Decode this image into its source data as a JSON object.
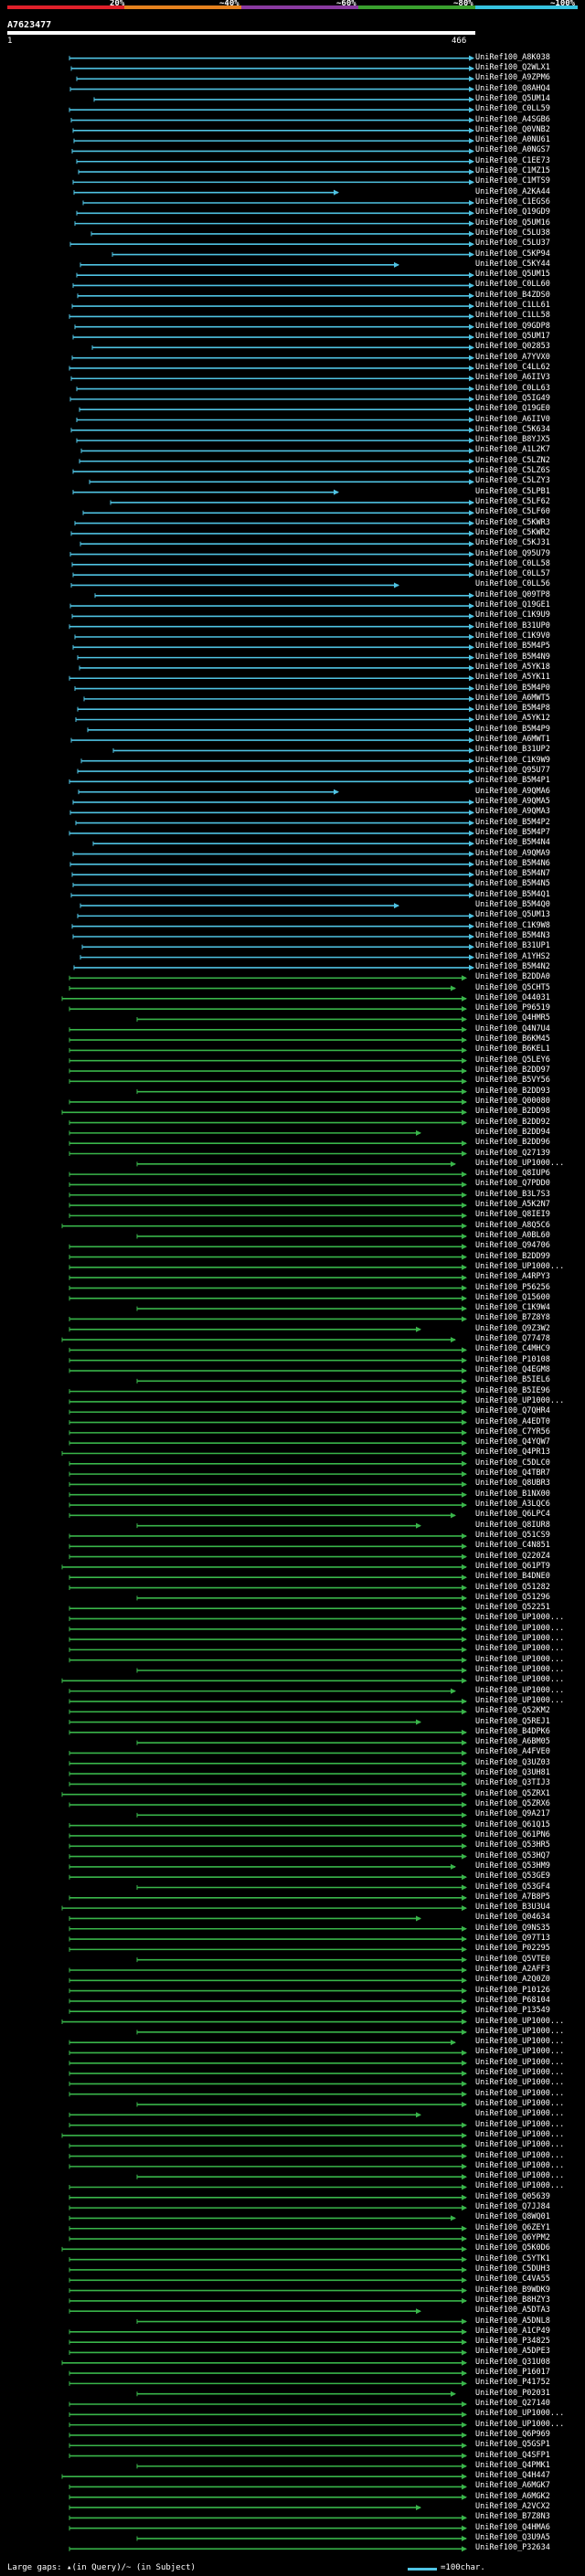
{
  "header": {
    "scale_labels": [
      "20%",
      "~40%",
      "~60%",
      "~80%",
      "~100%"
    ],
    "scale_colors": [
      "#e0202a",
      "#e6821e",
      "#8a3aa0",
      "#3aa02e",
      "#36c3e0"
    ],
    "query_id": "A7623477",
    "ruler_start": "1",
    "ruler_end": "466"
  },
  "colors": {
    "cyan": "#4fc3e3",
    "green": "#39b54a",
    "gap": "#ffffff"
  },
  "rows": {
    "cyan_labels": [
      "UniRef100_A8K038",
      "UniRef100_Q2WLX1",
      "UniRef100_A9ZPM6",
      "UniRef100_Q8AHQ4",
      "UniRef100_Q5UM14",
      "UniRef100_C0LL59",
      "UniRef100_A4SGB6",
      "UniRef100_Q0VNB2",
      "UniRef100_A0NU61",
      "UniRef100_A0NGS7",
      "UniRef100_C1EE73",
      "UniRef100_C1MZ15",
      "UniRef100_C1MTS9",
      "UniRef100_A2KA44",
      "UniRef100_C1EGS6",
      "UniRef100_Q19GD9",
      "UniRef100_Q5UM16",
      "UniRef100_C5LU38",
      "UniRef100_C5LU37",
      "UniRef100_C5KP94",
      "UniRef100_C5KY44",
      "UniRef100_Q5UM15",
      "UniRef100_C0LL60",
      "UniRef100_B4ZDS0",
      "UniRef100_C1LL61",
      "UniRef100_C1LL58",
      "UniRef100_Q9GDP8",
      "UniRef100_Q5UM17",
      "UniRef100_Q02853",
      "UniRef100_A7YVX0",
      "UniRef100_C4LL62",
      "UniRef100_A6IIV3",
      "UniRef100_C0LL63",
      "UniRef100_Q5IG49",
      "UniRef100_Q19GE0",
      "UniRef100_A6IIV0",
      "UniRef100_C5K634",
      "UniRef100_B8YJX5",
      "UniRef100_A1L2K7",
      "UniRef100_C5LZN2",
      "UniRef100_C5LZ6S",
      "UniRef100_C5LZY3",
      "UniRef100_C5LPB1",
      "UniRef100_C5LF62",
      "UniRef100_C5LF60",
      "UniRef100_C5KWR3",
      "UniRef100_C5KWR2",
      "UniRef100_C5KJ31",
      "UniRef100_Q95U79",
      "UniRef100_C0LL58",
      "UniRef100_C0LL57",
      "UniRef100_C0LL56",
      "UniRef100_Q09TP8",
      "UniRef100_Q19GE1",
      "UniRef100_C1K9U9",
      "UniRef100_B31UP0",
      "UniRef100_C1K9V0",
      "UniRef100_B5M4P5",
      "UniRef100_B5M4N9",
      "UniRef100_A5YK18",
      "UniRef100_A5YK11",
      "UniRef100_B5M4P0",
      "UniRef100_A6MWT5",
      "UniRef100_B5M4P8",
      "UniRef100_A5YK12",
      "UniRef100_B5M4P9",
      "UniRef100_A6MWT1",
      "UniRef100_B31UP2",
      "UniRef100_C1K9W9",
      "UniRef100_Q95U77",
      "UniRef100_B5M4P1",
      "UniRef100_A9QMA6",
      "UniRef100_A9QMA5",
      "UniRef100_A9QMA3",
      "UniRef100_B5M4P2",
      "UniRef100_B5M4P7",
      "UniRef100_B5M4N4",
      "UniRef100_A9QMA9",
      "UniRef100_B5M4N6",
      "UniRef100_B5M4N7",
      "UniRef100_B5M4N5",
      "UniRef100_B5M4Q1",
      "UniRef100_B5M4Q0",
      "UniRef100_Q5UM13",
      "UniRef100_C1K9W8",
      "UniRef100_B5M4N3",
      "UniRef100_B31UP1",
      "UniRef100_A1YHS2",
      "UniRef100_B5M4N2"
    ],
    "green_labels": [
      "UniRef100_B2DDA0",
      "UniRef100_Q5CHT5",
      "UniRef100_O44031",
      "UniRef100_P96519",
      "UniRef100_Q4HMR5",
      "UniRef100_Q4N7U4",
      "UniRef100_B6KM45",
      "UniRef100_B6KEL1",
      "UniRef100_Q5LEY6",
      "UniRef100_B2DD97",
      "UniRef100_B5VY56",
      "UniRef100_B2DD93",
      "UniRef100_Q00080",
      "UniRef100_B2DD98",
      "UniRef100_B2DD92",
      "UniRef100_B2DD94",
      "UniRef100_B2DD96",
      "UniRef100_Q27139",
      "UniRef100_UP1000...",
      "UniRef100_Q8IUP6",
      "UniRef100_Q7PDD0",
      "UniRef100_B3L7S3",
      "UniRef100_A5K2N7",
      "UniRef100_Q8IEI9",
      "UniRef100_A8Q5C6",
      "UniRef100_A0BL60",
      "UniRef100_Q94706",
      "UniRef100_B2DD99",
      "UniRef100_UP1000...",
      "UniRef100_A4RPY3",
      "UniRef100_P56256",
      "UniRef100_Q15600",
      "UniRef100_C1K9W4",
      "UniRef100_B7Z8Y8",
      "UniRef100_Q9Z3W2",
      "UniRef100_Q77478",
      "UniRef100_C4MHC9",
      "UniRef100_P10108",
      "UniRef100_Q4EGM8",
      "UniRef100_B5IEL6",
      "UniRef100_B5IE96",
      "UniRef100_UP1000...",
      "UniRef100_Q7QHR4",
      "UniRef100_A4EDT0",
      "UniRef100_C7YR56",
      "UniRef100_Q4YQW7",
      "UniRef100_Q4PR13",
      "UniRef100_C5DLC0",
      "UniRef100_Q4TBR7",
      "UniRef100_Q8UBR3",
      "UniRef100_B1NX00",
      "UniRef100_A3LQC6",
      "UniRef100_Q6LPC4",
      "UniRef100_Q8IUR8",
      "UniRef100_Q51CS9",
      "UniRef100_C4N851",
      "UniRef100_Q220Z4",
      "UniRef100_Q61PT9",
      "UniRef100_B4DNE0",
      "UniRef100_Q51282",
      "UniRef100_Q51296",
      "UniRef100_Q52251",
      "UniRef100_UP1000...",
      "UniRef100_UP1000...",
      "UniRef100_UP1000...",
      "UniRef100_UP1000...",
      "UniRef100_UP1000...",
      "UniRef100_UP1000...",
      "UniRef100_UP1000...",
      "UniRef100_UP1000...",
      "UniRef100_UP1000...",
      "UniRef100_Q52KM2",
      "UniRef100_Q5REJ1",
      "UniRef100_B4DPK6",
      "UniRef100_A6BM05",
      "UniRef100_A4FVE0",
      "UniRef100_Q3UZ03",
      "UniRef100_Q3UH81",
      "UniRef100_Q3TIJ3",
      "UniRef100_Q5ZRX1",
      "UniRef100_Q5ZRX6",
      "UniRef100_Q9A217",
      "UniRef100_Q61Q15",
      "UniRef100_Q61PN6",
      "UniRef100_Q53HR5",
      "UniRef100_Q53HQ7",
      "UniRef100_Q53HM9",
      "UniRef100_Q53GE9",
      "UniRef100_Q53GF4",
      "UniRef100_A7B8P5",
      "UniRef100_B3U3U4",
      "UniRef100_Q04634",
      "UniRef100_Q9NS35",
      "UniRef100_Q97T13",
      "UniRef100_P02295",
      "UniRef100_Q5VTE0",
      "UniRef100_A2AFF3",
      "UniRef100_A2Q0Z0",
      "UniRef100_P10126",
      "UniRef100_P68104",
      "UniRef100_P13549",
      "UniRef100_UP1000...",
      "UniRef100_UP1000...",
      "UniRef100_UP1000...",
      "UniRef100_UP1000...",
      "UniRef100_UP1000...",
      "UniRef100_UP1000...",
      "UniRef100_UP1000...",
      "UniRef100_UP1000...",
      "UniRef100_UP1000...",
      "UniRef100_UP1000...",
      "UniRef100_UP1000...",
      "UniRef100_UP1000...",
      "UniRef100_UP1000...",
      "UniRef100_UP1000...",
      "UniRef100_UP1000...",
      "UniRef100_UP1000...",
      "UniRef100_UP1000...",
      "UniRef100_Q05639",
      "UniRef100_Q7JJ84",
      "UniRef100_Q8WQ01",
      "UniRef100_Q6ZEY1",
      "UniRef100_Q6YPM2",
      "UniRef100_Q5K0D6",
      "UniRef100_C5YTK1",
      "UniRef100_C5DUH3",
      "UniRef100_C4VA55",
      "UniRef100_B9WDK9",
      "UniRef100_B8HZY3",
      "UniRef100_A5DTA3",
      "UniRef100_A5DNL8",
      "UniRef100_A1CP49",
      "UniRef100_P34825",
      "UniRef100_A5DPE3",
      "UniRef100_Q31U08",
      "UniRef100_P16017",
      "UniRef100_P41752",
      "UniRef100_P02031",
      "UniRef100_Q27140",
      "UniRef100_UP1000...",
      "UniRef100_UP1000...",
      "UniRef100_Q6P969",
      "UniRef100_Q5GSP1",
      "UniRef100_Q4SFP1",
      "UniRef100_Q4PMK1",
      "UniRef100_Q4H447",
      "UniRef100_A6MGK7",
      "UniRef100_A6MGK2",
      "UniRef100_A2VCX2",
      "UniRef100_B7Z8N3",
      "UniRef100_Q4HMA6",
      "UniRef100_Q3U9A5",
      "UniRef100_P32634"
    ]
  },
  "legend": {
    "text": "Large gaps: ▴(in Query)/~ (in Subject)",
    "scale": "=100char."
  }
}
